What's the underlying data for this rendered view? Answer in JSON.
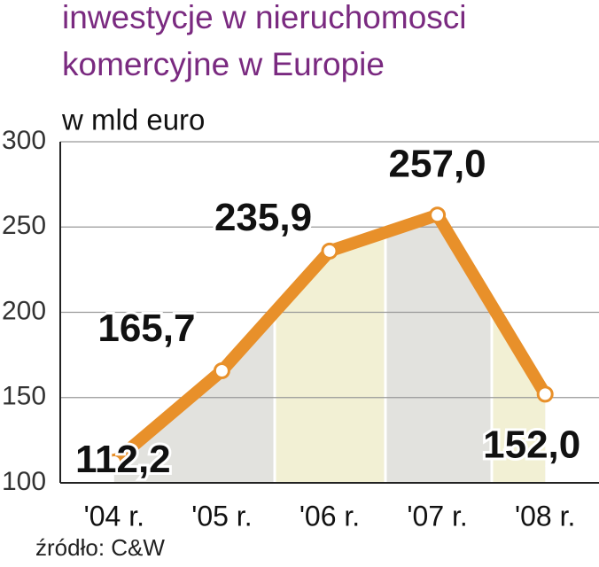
{
  "chart_data": {
    "type": "line",
    "title": [
      "inwestycje w nieruchomosci",
      "komercyjne w Europie"
    ],
    "subtitle": "w mld euro",
    "source": "źródło: C&W",
    "categories": [
      "'04 r.",
      "'05 r.",
      "'06 r.",
      "'07 r.",
      "'08 r."
    ],
    "series": [
      {
        "color": "#e8902a",
        "values": [
          112.2,
          165.7,
          235.9,
          257.0,
          152.0
        ],
        "value_labels": [
          "112,2",
          "165,7",
          "235,9",
          "257,0",
          "152,0"
        ]
      }
    ],
    "ylim": [
      100,
      300
    ],
    "yticks": [
      100,
      150,
      200,
      250,
      300
    ],
    "grid": true
  }
}
